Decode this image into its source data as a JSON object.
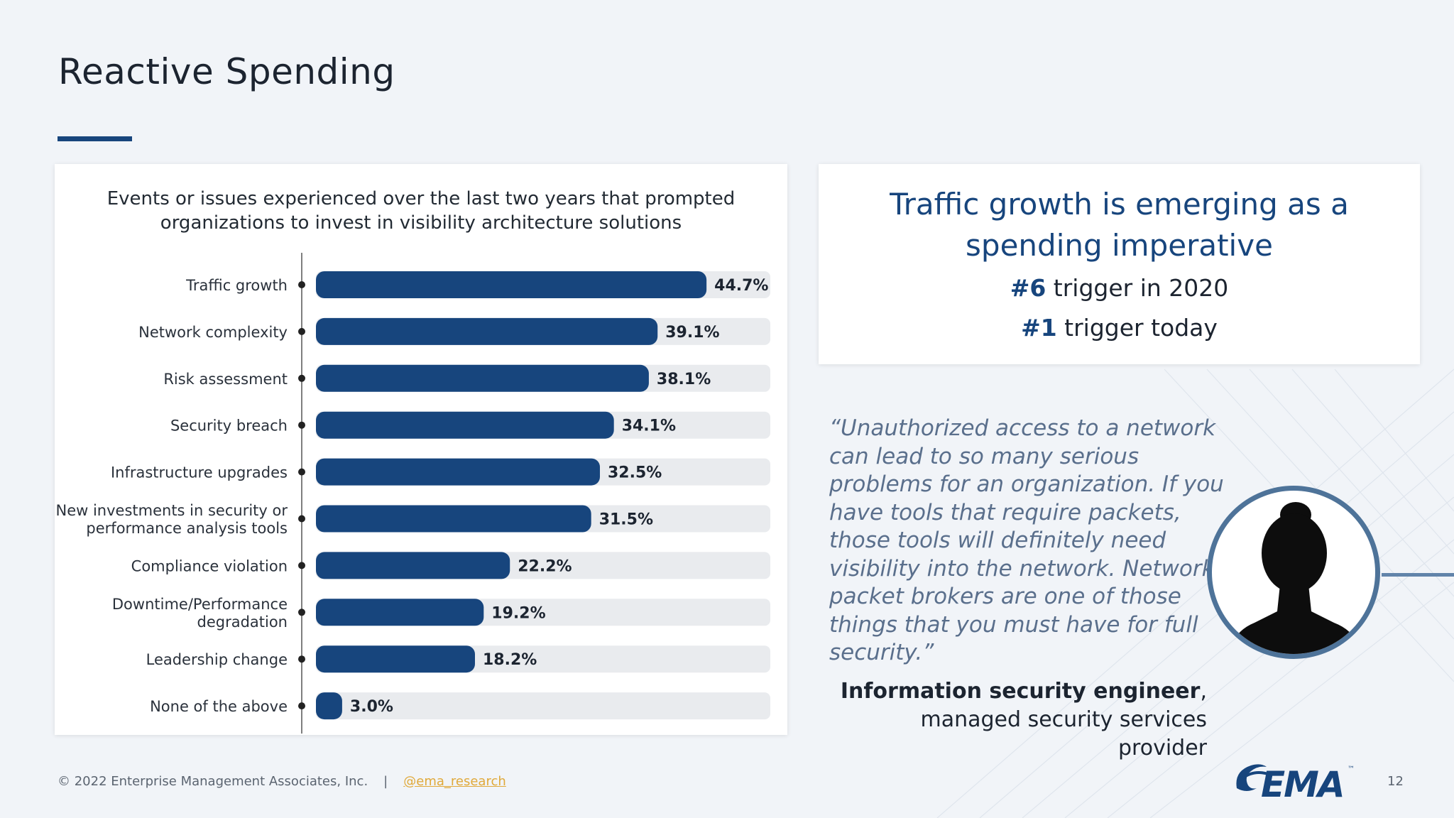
{
  "slide": {
    "title": "Reactive Spending",
    "page_number": "12"
  },
  "colors": {
    "accent": "#17457d",
    "track": "#e9ebee",
    "quote": "#5a6f8c",
    "link": "#e0a93a"
  },
  "chart_data": {
    "type": "bar",
    "orientation": "horizontal",
    "title_lines": [
      "Events or issues experienced over the last two years that prompted",
      "organizations to invest in visibility architecture solutions"
    ],
    "unit": "%",
    "xlim": [
      0,
      52
    ],
    "categories": [
      [
        "Traffic growth"
      ],
      [
        "Network complexity"
      ],
      [
        "Risk assessment"
      ],
      [
        "Security breach"
      ],
      [
        "Infrastructure upgrades"
      ],
      [
        "New investments in security or",
        "performance analysis tools"
      ],
      [
        "Compliance violation"
      ],
      [
        "Downtime/Performance",
        "degradation"
      ],
      [
        "Leadership change"
      ],
      [
        "None of the above"
      ]
    ],
    "values": [
      44.7,
      39.1,
      38.1,
      34.1,
      32.5,
      31.5,
      22.2,
      19.2,
      18.2,
      3.0
    ],
    "value_labels": [
      "44.7%",
      "39.1%",
      "38.1%",
      "34.1%",
      "32.5%",
      "31.5%",
      "22.2%",
      "19.2%",
      "18.2%",
      "3.0%"
    ]
  },
  "highlight": {
    "headline_line1": "Traffic growth is emerging as a",
    "headline_line2": "spending imperative",
    "rank_2020_num": "#6",
    "rank_2020_text": " trigger in 2020",
    "rank_today_num": "#1",
    "rank_today_text": " trigger today"
  },
  "quote": {
    "text": "“Unauthorized access to a network can lead to so many serious problems for an organization. If you have tools that require packets, those tools will definitely need visibility into the network. Network packet brokers are one of those things that you must have for full security.”",
    "role": "Information security engineer",
    "role_suffix": ",",
    "org": "managed security services provider",
    "avatar_icon": "person-silhouette-icon"
  },
  "footer": {
    "copyright": "© 2022 Enterprise Management Associates, Inc.",
    "separator": "|",
    "handle": "@ema_research",
    "logo_text": "EMA",
    "logo_tm": "™"
  }
}
